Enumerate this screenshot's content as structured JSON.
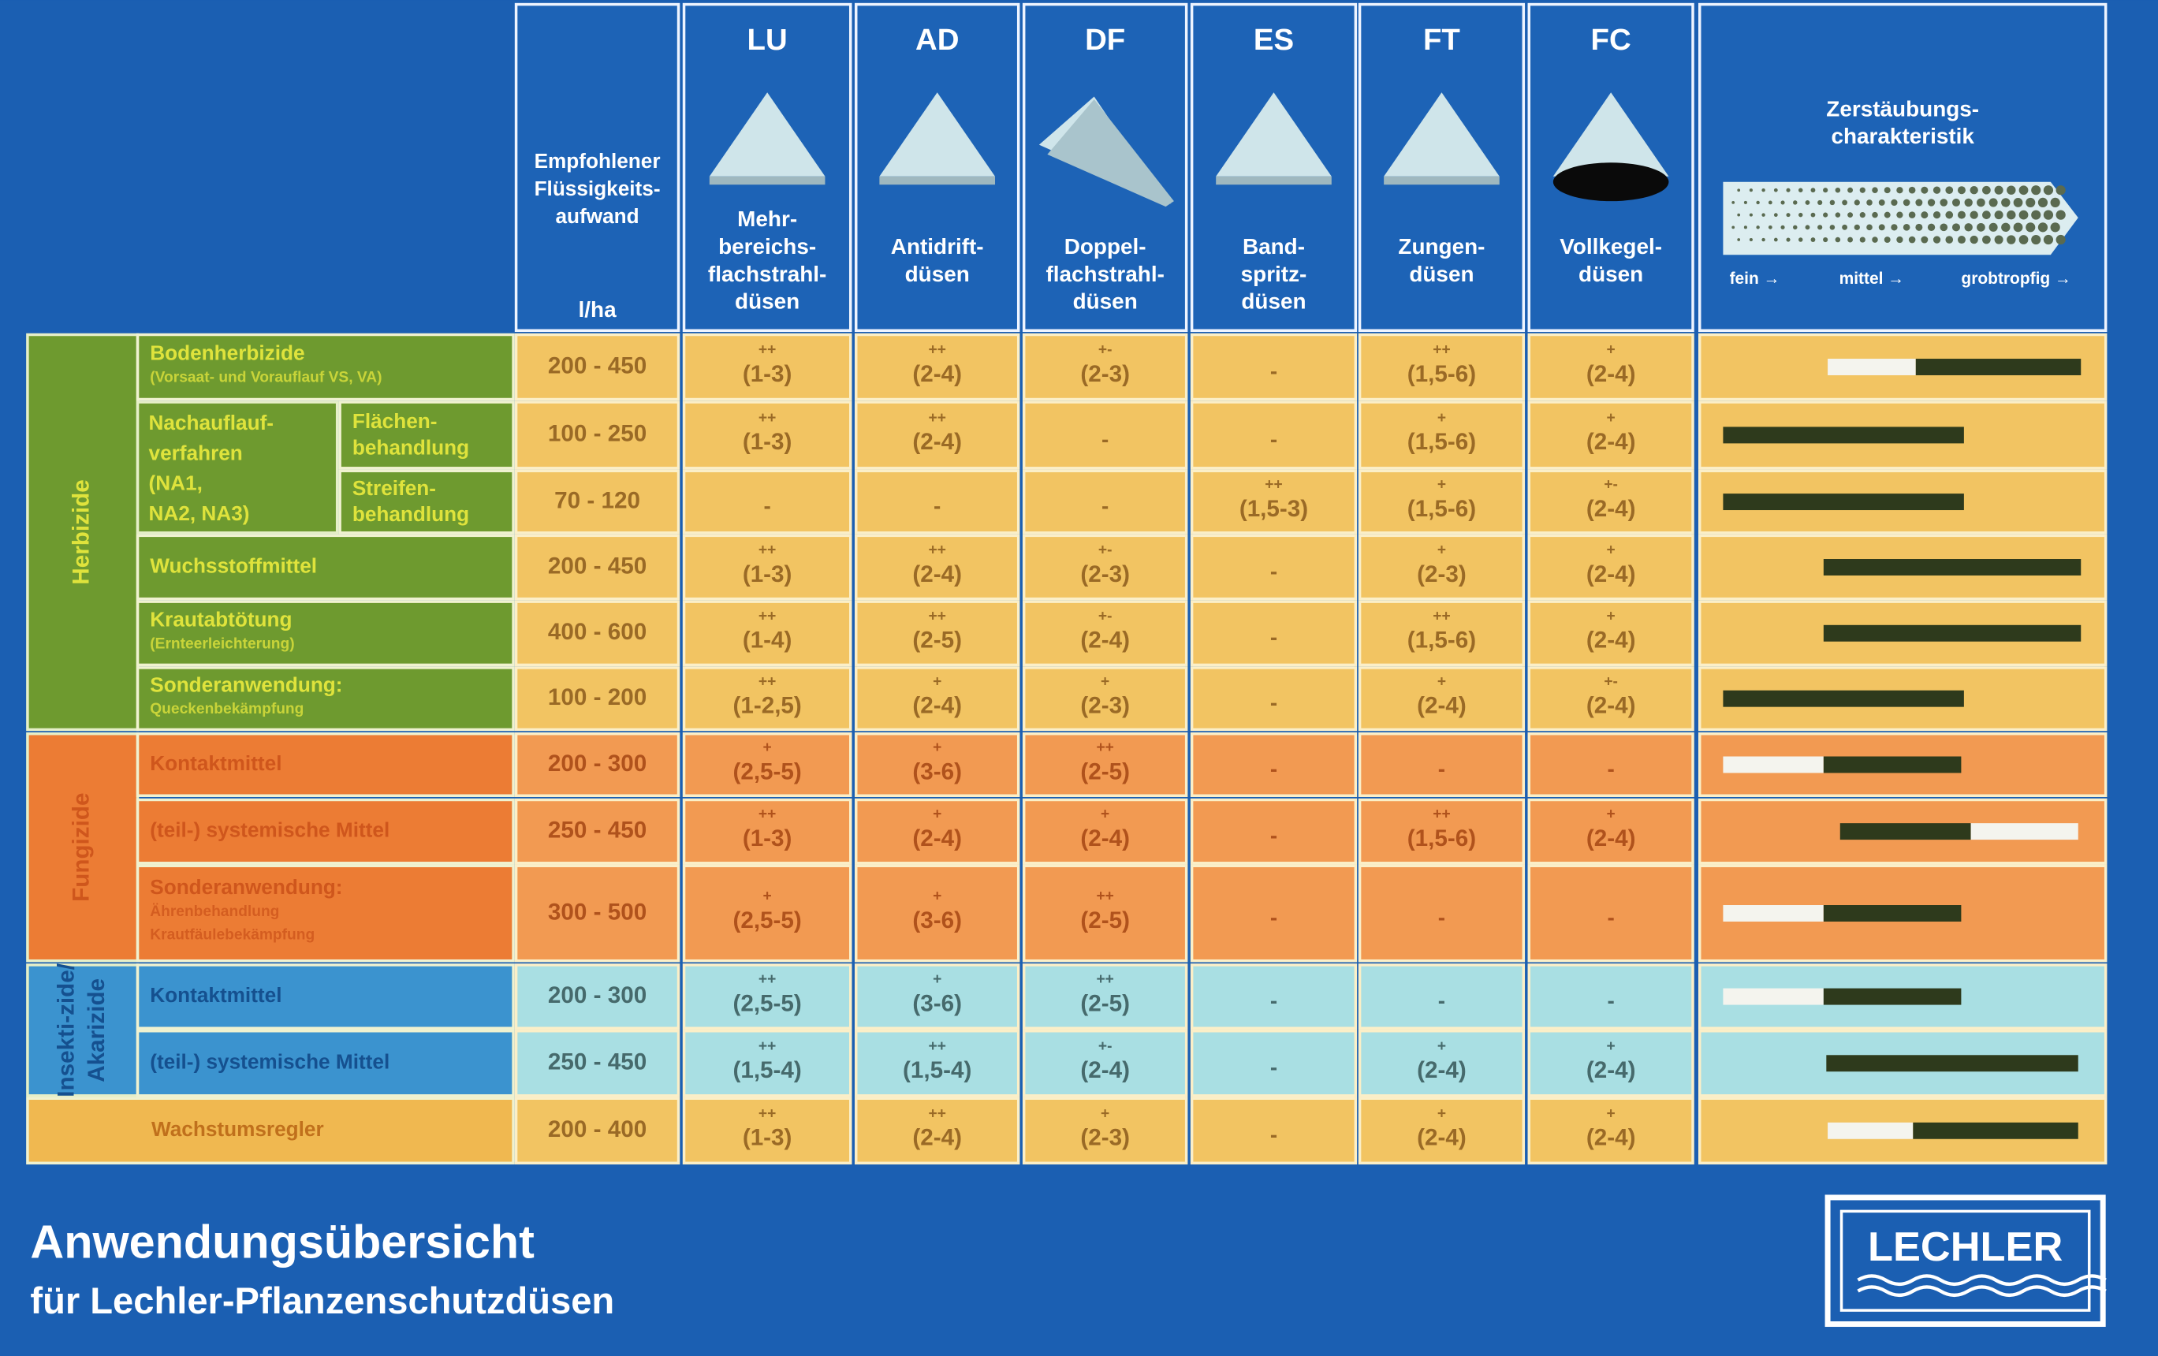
{
  "header": {
    "flow": {
      "label": [
        "Empfohlener",
        "Flüssigkeits-",
        "aufwand"
      ],
      "unit": "l/ha"
    },
    "nozzles": [
      {
        "code": "LU",
        "label": [
          "Mehr-",
          "bereichs-",
          "flachstrahl-",
          "düsen"
        ]
      },
      {
        "code": "AD",
        "label": [
          "Antidrift-",
          "düsen"
        ]
      },
      {
        "code": "DF",
        "label": [
          "Doppel-",
          "flachstrahl-",
          "düsen"
        ]
      },
      {
        "code": "ES",
        "label": [
          "Band-",
          "spritz-",
          "düsen"
        ]
      },
      {
        "code": "FT",
        "label": [
          "Zungen-",
          "düsen"
        ]
      },
      {
        "code": "FC",
        "label": [
          "Vollkegel-",
          "düsen"
        ]
      }
    ],
    "spray": {
      "title": [
        "Zerstäubungs-",
        "charakteristik"
      ],
      "scale": [
        "fein →",
        "mittel →",
        "grobtropfig →"
      ]
    }
  },
  "groups": [
    {
      "name": [
        "Herbizide"
      ]
    },
    {
      "name": [
        "Fungizide"
      ]
    },
    {
      "name": [
        "Insekti-zide/",
        "Akarizide"
      ]
    }
  ],
  "nachauflauf": [
    "Nachauflauf-",
    "verfahren",
    "(NA1,",
    "NA2, NA3)"
  ],
  "rows": [
    {
      "label": [
        "Bodenherbizide"
      ],
      "sub": [
        "(Vorsaat- und Vorauflauf VS, VA)"
      ],
      "flow": "200 - 450",
      "cells": [
        {
          "marks": "++",
          "range": "(1-3)"
        },
        {
          "marks": "++",
          "range": "(2-4)"
        },
        {
          "marks": "+-",
          "range": "(2-3)"
        },
        "-",
        {
          "marks": "++",
          "range": "(1,5-6)"
        },
        {
          "marks": "+",
          "range": "(2-4)"
        }
      ]
    },
    {
      "label": [
        "Flächen-",
        "behandlung"
      ],
      "flow": "100 - 250",
      "cells": [
        {
          "marks": "++",
          "range": "(1-3)"
        },
        {
          "marks": "++",
          "range": "(2-4)"
        },
        "-",
        "-",
        {
          "marks": "+",
          "range": "(1,5-6)"
        },
        {
          "marks": "+",
          "range": "(2-4)"
        }
      ]
    },
    {
      "label": [
        "Streifen-",
        "behandlung"
      ],
      "flow": "70 - 120",
      "cells": [
        "-",
        "-",
        "-",
        {
          "marks": "++",
          "range": "(1,5-3)"
        },
        {
          "marks": "+",
          "range": "(1,5-6)"
        },
        {
          "marks": "+-",
          "range": "(2-4)"
        }
      ]
    },
    {
      "label": [
        "Wuchsstoffmittel"
      ],
      "flow": "200 - 450",
      "cells": [
        {
          "marks": "++",
          "range": "(1-3)"
        },
        {
          "marks": "++",
          "range": "(2-4)"
        },
        {
          "marks": "+-",
          "range": "(2-3)"
        },
        "-",
        {
          "marks": "+",
          "range": "(2-3)"
        },
        {
          "marks": "+",
          "range": "(2-4)"
        }
      ]
    },
    {
      "label": [
        "Krautabtötung"
      ],
      "sub": [
        "(Ernteerleichterung)"
      ],
      "flow": "400 - 600",
      "cells": [
        {
          "marks": "++",
          "range": "(1-4)"
        },
        {
          "marks": "++",
          "range": "(2-5)"
        },
        {
          "marks": "+-",
          "range": "(2-4)"
        },
        "-",
        {
          "marks": "++",
          "range": "(1,5-6)"
        },
        {
          "marks": "+",
          "range": "(2-4)"
        }
      ]
    },
    {
      "label": [
        "Sonderanwendung:"
      ],
      "sub": [
        "Queckenbekämpfung"
      ],
      "flow": "100 - 200",
      "cells": [
        {
          "marks": "++",
          "range": "(1-2,5)"
        },
        {
          "marks": "+",
          "range": "(2-4)"
        },
        {
          "marks": "+",
          "range": "(2-3)"
        },
        "-",
        {
          "marks": "+",
          "range": "(2-4)"
        },
        {
          "marks": "+-",
          "range": "(2-4)"
        }
      ]
    },
    {
      "label": [
        "Kontaktmittel"
      ],
      "flow": "200 - 300",
      "cells": [
        {
          "marks": "+",
          "range": "(2,5-5)"
        },
        {
          "marks": "+",
          "range": "(3-6)"
        },
        {
          "marks": "++",
          "range": "(2-5)"
        },
        "-",
        "-",
        "-"
      ]
    },
    {
      "label": [
        "(teil-) systemische Mittel"
      ],
      "flow": "250 - 450",
      "cells": [
        {
          "marks": "++",
          "range": "(1-3)"
        },
        {
          "marks": "+",
          "range": "(2-4)"
        },
        {
          "marks": "+",
          "range": "(2-4)"
        },
        "-",
        {
          "marks": "++",
          "range": "(1,5-6)"
        },
        {
          "marks": "+",
          "range": "(2-4)"
        }
      ]
    },
    {
      "label": [
        "Sonderanwendung:"
      ],
      "sub": [
        "Ährenbehandlung",
        "Krautfäulebekämpfung"
      ],
      "flow": "300 - 500",
      "cells": [
        {
          "marks": "+",
          "range": "(2,5-5)"
        },
        {
          "marks": "+",
          "range": "(3-6)"
        },
        {
          "marks": "++",
          "range": "(2-5)"
        },
        "-",
        "-",
        "-"
      ]
    },
    {
      "label": [
        "Kontaktmittel"
      ],
      "flow": "200 - 300",
      "cells": [
        {
          "marks": "++",
          "range": "(2,5-5)"
        },
        {
          "marks": "+",
          "range": "(3-6)"
        },
        {
          "marks": "++",
          "range": "(2-5)"
        },
        "-",
        "-",
        "-"
      ]
    },
    {
      "label": [
        "(teil-) systemische Mittel"
      ],
      "flow": "250 - 450",
      "cells": [
        {
          "marks": "++",
          "range": "(1,5-4)"
        },
        {
          "marks": "++",
          "range": "(1,5-4)"
        },
        {
          "marks": "+-",
          "range": "(2-4)"
        },
        "-",
        {
          "marks": "+",
          "range": "(2-4)"
        },
        {
          "marks": "+",
          "range": "(2-4)"
        }
      ]
    },
    {
      "label": [
        "Wachstumsregler"
      ],
      "flow": "200 - 400",
      "cells": [
        {
          "marks": "++",
          "range": "(1-3)"
        },
        {
          "marks": "++",
          "range": "(2-4)"
        },
        {
          "marks": "+",
          "range": "(2-3)"
        },
        "-",
        {
          "marks": "+",
          "range": "(2-4)"
        },
        {
          "marks": "+",
          "range": "(2-4)"
        }
      ]
    }
  ],
  "footer": {
    "title": "Anwendungsübersicht",
    "subtitle": "für Lechler-Pflanzenschutzdüsen"
  },
  "logo": "LECHLER"
}
